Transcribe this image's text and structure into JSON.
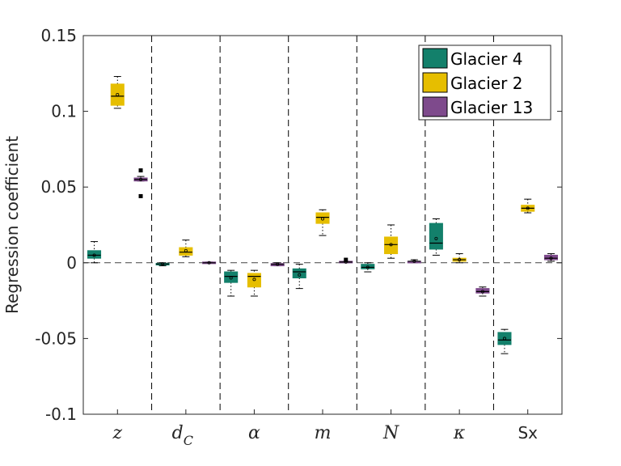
{
  "chart_data": {
    "type": "box",
    "title": "",
    "xlabel": "",
    "ylabel": "Regression coefficient",
    "ylim": [
      -0.1,
      0.15
    ],
    "yticks": [
      {
        "value": -0.1,
        "label": "-0.1"
      },
      {
        "value": -0.05,
        "label": "-0.05"
      },
      {
        "value": 0,
        "label": "0"
      },
      {
        "value": 0.05,
        "label": "0.05"
      },
      {
        "value": 0.1,
        "label": "0.1"
      },
      {
        "value": 0.15,
        "label": "0.15"
      }
    ],
    "categories": [
      {
        "main": "z",
        "sub": "",
        "style": "math"
      },
      {
        "main": "d",
        "sub": "C",
        "style": "math"
      },
      {
        "main": "α",
        "sub": "",
        "style": "greek"
      },
      {
        "main": "m",
        "sub": "",
        "style": "math"
      },
      {
        "main": "N",
        "sub": "",
        "style": "math"
      },
      {
        "main": "κ",
        "sub": "",
        "style": "greek"
      },
      {
        "main": "Sx",
        "sub": "",
        "style": "plain"
      }
    ],
    "zero_line": true,
    "category_separators": "dashed",
    "legend": {
      "position": "top-right"
    },
    "series": [
      {
        "name": "Glacier 4",
        "color": "#13806b",
        "boxes": [
          {
            "min": 0.0,
            "q1": 0.003,
            "median": 0.005,
            "q3": 0.008,
            "max": 0.014,
            "mean": 0.005,
            "outliers": []
          },
          {
            "min": -0.002,
            "q1": -0.0012,
            "median": -0.0008,
            "q3": -0.0004,
            "max": 0.0,
            "mean": -0.0008,
            "outliers": []
          },
          {
            "min": -0.022,
            "q1": -0.013,
            "median": -0.009,
            "q3": -0.006,
            "max": -0.005,
            "mean": -0.01,
            "outliers": []
          },
          {
            "min": -0.017,
            "q1": -0.01,
            "median": -0.006,
            "q3": -0.004,
            "max": -0.001,
            "mean": -0.008,
            "outliers": []
          },
          {
            "min": -0.006,
            "q1": -0.004,
            "median": -0.003,
            "q3": -0.001,
            "max": 0.0,
            "mean": -0.003,
            "outliers": []
          },
          {
            "min": 0.005,
            "q1": 0.009,
            "median": 0.013,
            "q3": 0.026,
            "max": 0.029,
            "mean": 0.016,
            "outliers": []
          },
          {
            "min": -0.06,
            "q1": -0.054,
            "median": -0.051,
            "q3": -0.046,
            "max": -0.044,
            "mean": -0.05,
            "outliers": []
          }
        ]
      },
      {
        "name": "Glacier 2",
        "color": "#e6be00",
        "boxes": [
          {
            "min": 0.102,
            "q1": 0.104,
            "median": 0.11,
            "q3": 0.118,
            "max": 0.123,
            "mean": 0.111,
            "outliers": []
          },
          {
            "min": 0.004,
            "q1": 0.005,
            "median": 0.007,
            "q3": 0.01,
            "max": 0.015,
            "mean": 0.008,
            "outliers": []
          },
          {
            "min": -0.022,
            "q1": -0.016,
            "median": -0.009,
            "q3": -0.007,
            "max": -0.005,
            "mean": -0.011,
            "outliers": []
          },
          {
            "min": 0.018,
            "q1": 0.026,
            "median": 0.03,
            "q3": 0.033,
            "max": 0.035,
            "mean": 0.029,
            "outliers": []
          },
          {
            "min": 0.003,
            "q1": 0.006,
            "median": 0.012,
            "q3": 0.017,
            "max": 0.025,
            "mean": 0.012,
            "outliers": []
          },
          {
            "min": 0.0,
            "q1": 0.001,
            "median": 0.002,
            "q3": 0.003,
            "max": 0.006,
            "mean": 0.002,
            "outliers": []
          },
          {
            "min": 0.033,
            "q1": 0.034,
            "median": 0.036,
            "q3": 0.038,
            "max": 0.042,
            "mean": 0.036,
            "outliers": []
          }
        ]
      },
      {
        "name": "Glacier 13",
        "color": "#7e4a8c",
        "boxes": [
          {
            "min": 0.054,
            "q1": 0.054,
            "median": 0.055,
            "q3": 0.056,
            "max": 0.057,
            "mean": 0.055,
            "outliers": [
              0.061,
              0.044
            ]
          },
          {
            "min": 0.0,
            "q1": 0.0,
            "median": 0.0,
            "q3": 0.0005,
            "max": 0.0005,
            "mean": 0.0,
            "outliers": []
          },
          {
            "min": -0.002,
            "q1": -0.002,
            "median": -0.001,
            "q3": -0.0005,
            "max": 0.0,
            "mean": -0.001,
            "outliers": []
          },
          {
            "min": 0.0,
            "q1": 0.0,
            "median": 0.0005,
            "q3": 0.001,
            "max": 0.001,
            "mean": 0.0005,
            "outliers": [
              0.002
            ]
          },
          {
            "min": 0.0,
            "q1": 0.0,
            "median": 0.001,
            "q3": 0.001,
            "max": 0.002,
            "mean": 0.001,
            "outliers": []
          },
          {
            "min": -0.022,
            "q1": -0.02,
            "median": -0.019,
            "q3": -0.017,
            "max": -0.016,
            "mean": -0.019,
            "outliers": []
          },
          {
            "min": 0.001,
            "q1": 0.002,
            "median": 0.003,
            "q3": 0.005,
            "max": 0.006,
            "mean": 0.003,
            "outliers": []
          }
        ]
      }
    ]
  }
}
